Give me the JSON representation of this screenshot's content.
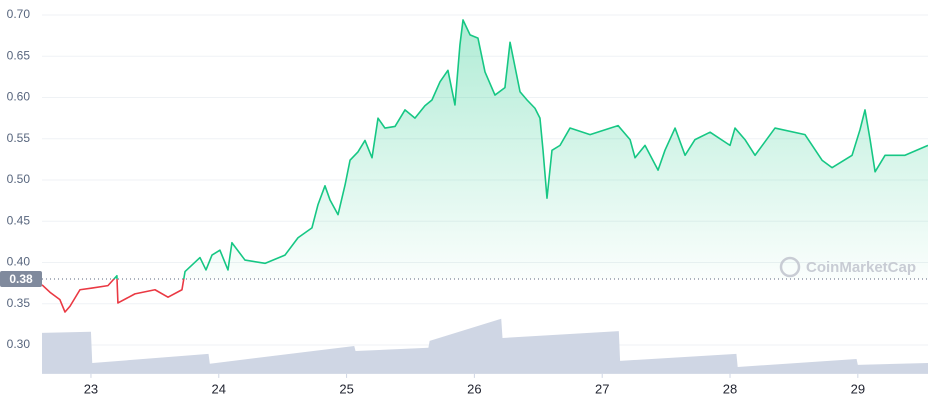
{
  "chart_data": {
    "type": "line",
    "watermark": "CoinMarketCap",
    "xlim": [
      22.617,
      29.549
    ],
    "xticks": [
      23,
      24,
      25,
      26,
      27,
      28,
      29
    ],
    "ylim": [
      0.265,
      0.705
    ],
    "yticks": [
      {
        "value": 0.3,
        "label": "0.30"
      },
      0.35,
      {
        "value": 0.4,
        "label": "0.40"
      },
      0.45,
      {
        "value": 0.5,
        "label": "0.50"
      },
      0.55,
      {
        "value": 0.6,
        "label": "0.60"
      },
      0.65,
      {
        "value": 0.7,
        "label": "0.70"
      }
    ],
    "y2lim": [
      0,
      100
    ],
    "baseline": 0.38,
    "grid": true,
    "up_color": "#16c784",
    "down_color": "#ea3943",
    "series": [
      {
        "color": "#16c784",
        "x": [
          22.617,
          22.679,
          22.757,
          22.797,
          22.836,
          22.914,
          23.008,
          23.133,
          23.203,
          23.211,
          23.344,
          23.501,
          23.603,
          23.712,
          23.736,
          23.853,
          23.9,
          23.947,
          24.009,
          24.072,
          24.103,
          24.205,
          24.362,
          24.518,
          24.62,
          24.729,
          24.776,
          24.831,
          24.87,
          24.933,
          24.988,
          25.027,
          25.089,
          25.144,
          25.199,
          25.246,
          25.3,
          25.379,
          25.457,
          25.535,
          25.613,
          25.668,
          25.731,
          25.793,
          25.848,
          25.887,
          25.911,
          25.966,
          26.028,
          26.083,
          26.161,
          26.239,
          26.279,
          26.357,
          26.412,
          26.474,
          26.513,
          26.537,
          26.568,
          26.607,
          26.67,
          26.748,
          26.905,
          27.124,
          27.218,
          27.257,
          27.335,
          27.437,
          27.491,
          27.57,
          27.648,
          27.726,
          27.844,
          28.0,
          28.039,
          28.117,
          28.196,
          28.352,
          28.587,
          28.72,
          28.798,
          28.955,
          29.017,
          29.056,
          29.096,
          29.135,
          29.213,
          29.369,
          29.549
        ],
        "values": [
          0.373,
          0.364,
          0.355,
          0.34,
          0.347,
          0.367,
          0.369,
          0.372,
          0.384,
          0.351,
          0.362,
          0.367,
          0.358,
          0.367,
          0.389,
          0.406,
          0.391,
          0.409,
          0.415,
          0.391,
          0.424,
          0.403,
          0.399,
          0.409,
          0.43,
          0.442,
          0.47,
          0.493,
          0.476,
          0.458,
          0.494,
          0.524,
          0.534,
          0.548,
          0.527,
          0.575,
          0.563,
          0.565,
          0.585,
          0.575,
          0.59,
          0.597,
          0.619,
          0.633,
          0.591,
          0.664,
          0.694,
          0.676,
          0.672,
          0.631,
          0.603,
          0.612,
          0.667,
          0.607,
          0.597,
          0.587,
          0.575,
          0.536,
          0.478,
          0.536,
          0.542,
          0.563,
          0.555,
          0.566,
          0.549,
          0.527,
          0.542,
          0.512,
          0.536,
          0.563,
          0.53,
          0.549,
          0.558,
          0.542,
          0.563,
          0.549,
          0.53,
          0.563,
          0.555,
          0.524,
          0.515,
          0.53,
          0.561,
          0.585,
          0.549,
          0.51,
          0.53,
          0.53,
          0.542
        ]
      },
      {
        "color": "#cfd6e4",
        "axis": "y2",
        "x": [
          22.617,
          23.0,
          23.01,
          23.92,
          23.93,
          25.06,
          25.07,
          25.64,
          25.65,
          26.21,
          26.22,
          27.13,
          27.14,
          28.05,
          28.06,
          28.99,
          29.0,
          29.549
        ],
        "values": [
          11.3,
          11.6,
          3.0,
          5.5,
          2.8,
          7.7,
          6.3,
          7.2,
          9.1,
          15.2,
          9.9,
          11.8,
          3.6,
          5.5,
          1.9,
          4.1,
          2.5,
          3.0
        ]
      }
    ]
  }
}
